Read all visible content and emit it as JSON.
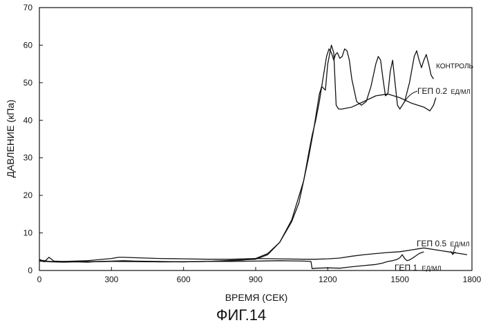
{
  "chart_data": {
    "type": "line",
    "xlabel": "ВРЕМЯ (СЕК)",
    "ylabel": "ДАВЛЕНИЕ (кПа)",
    "caption": "ФИГ.14",
    "xlim": [
      0,
      1800
    ],
    "ylim": [
      0,
      70
    ],
    "xticks": [
      0,
      300,
      600,
      900,
      1200,
      1500,
      1800
    ],
    "yticks": [
      0,
      10,
      20,
      30,
      40,
      50,
      60,
      70
    ],
    "grid": false,
    "legend": "inline labels at line ends",
    "series": [
      {
        "name": "КОНТРОЛЬ",
        "x": [
          0,
          20,
          50,
          100,
          150,
          200,
          250,
          300,
          350,
          400,
          500,
          600,
          700,
          800,
          850,
          900,
          950,
          1000,
          1050,
          1080,
          1100,
          1120,
          1135,
          1150,
          1165,
          1175,
          1185,
          1195,
          1205,
          1215,
          1225,
          1232,
          1240,
          1250,
          1260,
          1270,
          1280,
          1290,
          1300,
          1320,
          1340,
          1360,
          1380,
          1400,
          1410,
          1420,
          1430,
          1440,
          1450,
          1460,
          1470,
          1480,
          1490,
          1500,
          1520,
          1540,
          1560,
          1570,
          1580,
          1590,
          1600,
          1610,
          1620,
          1630,
          1640
        ],
        "values": [
          2.8,
          2.6,
          2.3,
          2.2,
          2.3,
          2.2,
          2.4,
          2.5,
          2.6,
          2.5,
          2.4,
          2.3,
          2.4,
          2.6,
          2.8,
          3.2,
          4.5,
          7.5,
          13,
          18,
          24,
          31,
          36,
          40,
          45,
          49,
          53,
          57,
          59,
          58,
          56,
          57.5,
          58,
          56.5,
          57,
          59,
          58.5,
          56,
          51,
          45,
          44,
          45,
          49,
          55,
          57,
          56,
          51,
          46.5,
          47,
          53,
          56,
          50,
          44,
          43,
          45,
          50,
          57,
          58.5,
          56,
          54,
          56,
          57.5,
          55,
          52,
          51
        ]
      },
      {
        "name": "ГЕП 0.2",
        "x": [
          0,
          100,
          300,
          500,
          700,
          900,
          950,
          1000,
          1050,
          1100,
          1120,
          1140,
          1155,
          1165,
          1175,
          1190,
          1200,
          1215,
          1225,
          1235,
          1245,
          1260,
          1300,
          1350,
          1400,
          1450,
          1500,
          1550,
          1600,
          1625,
          1640,
          1650
        ],
        "values": [
          2.5,
          2.3,
          2.4,
          2.3,
          2.4,
          3,
          4.2,
          7.5,
          13.5,
          24,
          30,
          37,
          43,
          47,
          49,
          48,
          55,
          60,
          58,
          44,
          43,
          43,
          43.5,
          45,
          46.5,
          47,
          46,
          44.5,
          43.5,
          42.5,
          44,
          46
        ]
      },
      {
        "name": "ГЕП 0.5",
        "x": [
          0,
          20,
          40,
          60,
          100,
          200,
          300,
          330,
          350,
          400,
          500,
          600,
          700,
          800,
          900,
          1000,
          1100,
          1120,
          1150,
          1200,
          1250,
          1300,
          1350,
          1400,
          1450,
          1500,
          1550,
          1600,
          1650,
          1700,
          1750,
          1780
        ],
        "values": [
          3,
          2.3,
          3.5,
          2.5,
          2.4,
          2.6,
          3.2,
          3.5,
          3.5,
          3.4,
          3.2,
          3.1,
          3.0,
          3.0,
          3.2,
          3.1,
          3.0,
          3.0,
          3.0,
          3.1,
          3.3,
          3.8,
          4.2,
          4.5,
          4.8,
          5.0,
          5.5,
          6.0,
          5.5,
          5.0,
          4.5,
          4.2
        ]
      },
      {
        "name": "ГЕП 1",
        "x": [
          0,
          50,
          100,
          200,
          300,
          400,
          500,
          600,
          700,
          800,
          900,
          1000,
          1100,
          1130,
          1135,
          1150,
          1200,
          1250,
          1300,
          1350,
          1400,
          1430,
          1450,
          1470,
          1490,
          1500,
          1510,
          1520,
          1530,
          1540,
          1560,
          1580,
          1600
        ],
        "values": [
          2.5,
          2.3,
          2.4,
          2.3,
          2.4,
          2.4,
          2.3,
          2.3,
          2.4,
          2.4,
          2.5,
          2.6,
          2.5,
          2.4,
          0.5,
          0.6,
          0.7,
          0.6,
          1.0,
          1.3,
          1.6,
          2.0,
          2.4,
          2.6,
          3.0,
          3.4,
          4.2,
          3.2,
          2.6,
          2.8,
          3.6,
          4.5,
          5.0
        ]
      }
    ],
    "annotations": [
      {
        "text": "КОНТРОЛЬ"
      },
      {
        "text": "ГЕП 0.2",
        "subtext": "ЕД/МЛ"
      },
      {
        "text": "ГЕП 0.5",
        "subtext": "ЕД/МЛ"
      },
      {
        "text": "ГЕП 1",
        "subtext": "ЕД/МЛ"
      }
    ]
  }
}
